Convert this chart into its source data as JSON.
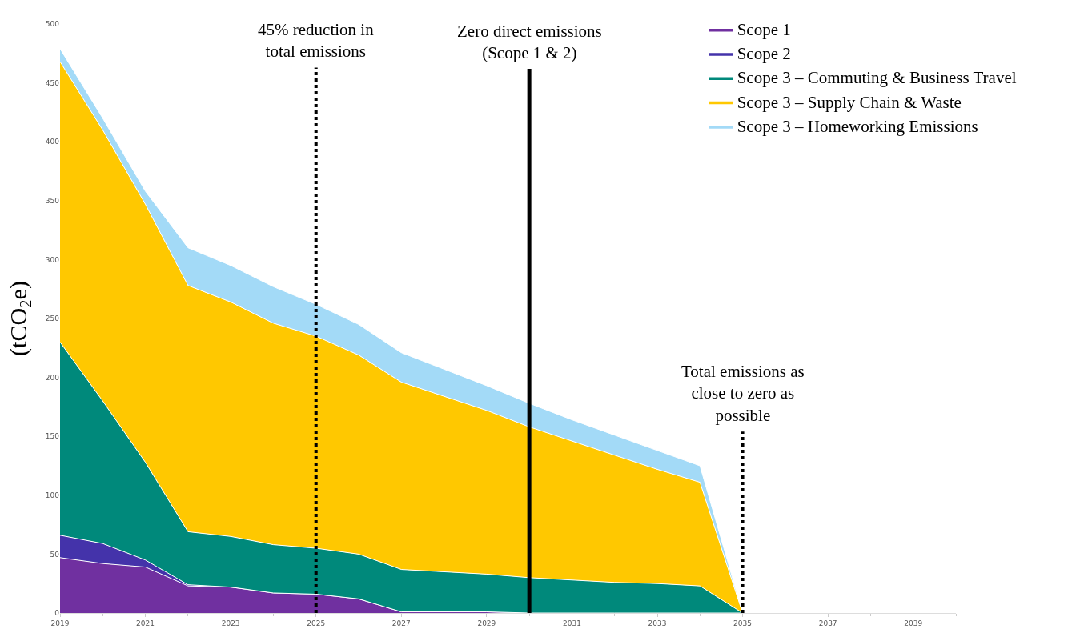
{
  "chart_data": {
    "type": "area",
    "stacked": true,
    "ylabel": "(tCO$_{2}$e)",
    "x": [
      2019,
      2020,
      2021,
      2022,
      2023,
      2024,
      2025,
      2026,
      2027,
      2028,
      2029,
      2030,
      2031,
      2032,
      2033,
      2034,
      2035
    ],
    "series": [
      {
        "name": "Scope 1",
        "color": "#7030a0",
        "values": [
          47,
          42,
          39,
          23,
          22,
          17,
          16,
          12,
          1,
          1,
          1,
          0,
          0,
          0,
          0,
          0,
          0
        ]
      },
      {
        "name": "Scope 2",
        "color": "#4433aa",
        "values": [
          19,
          17,
          6,
          1,
          0,
          0,
          0,
          0,
          0,
          0,
          0,
          0,
          0,
          0,
          0,
          0,
          0
        ]
      },
      {
        "name": "Scope 3 – Commuting & Business Travel",
        "color": "#00897b",
        "values": [
          164,
          121,
          83,
          45,
          43,
          41,
          39,
          38,
          36,
          34,
          32,
          30,
          28,
          26,
          25,
          23,
          0
        ]
      },
      {
        "name": "Scope 3 – Supply Chain & Waste",
        "color": "#ffc800",
        "values": [
          238,
          230,
          219,
          209,
          199,
          188,
          180,
          169,
          159,
          149,
          139,
          128,
          118,
          108,
          97,
          88,
          0
        ]
      },
      {
        "name": "Scope 3 – Homeworking Emissions",
        "color": "#a3daf7",
        "values": [
          11,
          10,
          11,
          32,
          31,
          31,
          27,
          26,
          25,
          23,
          21,
          20,
          18,
          17,
          16,
          14,
          0
        ]
      }
    ],
    "xlim": [
      2019,
      2040
    ],
    "xticks": [
      2019,
      2021,
      2023,
      2025,
      2027,
      2029,
      2031,
      2033,
      2035,
      2037,
      2039
    ],
    "ylim": [
      0,
      500
    ],
    "yticks": [
      0,
      50,
      100,
      150,
      200,
      250,
      300,
      350,
      400,
      450,
      500
    ],
    "ref_lines": [
      {
        "axis": "x",
        "value": 2025,
        "line_style": "dotted",
        "color": "#000000"
      },
      {
        "axis": "x",
        "value": 2030,
        "line_style": "solid",
        "color": "#000000"
      },
      {
        "axis": "x",
        "value": 2035,
        "line_style": "dotted",
        "color": "#000000"
      }
    ],
    "annotations": [
      {
        "text": "45% reduction in\ntotal emissions",
        "x": 2025,
        "y": 463
      },
      {
        "text": "Zero direct emissions\n(Scope 1 & 2)",
        "x": 2030,
        "y": 462
      },
      {
        "text": "Total emissions as\nclose to zero as\npossible",
        "x": 2035,
        "y": 154
      }
    ],
    "legend": "top right"
  }
}
